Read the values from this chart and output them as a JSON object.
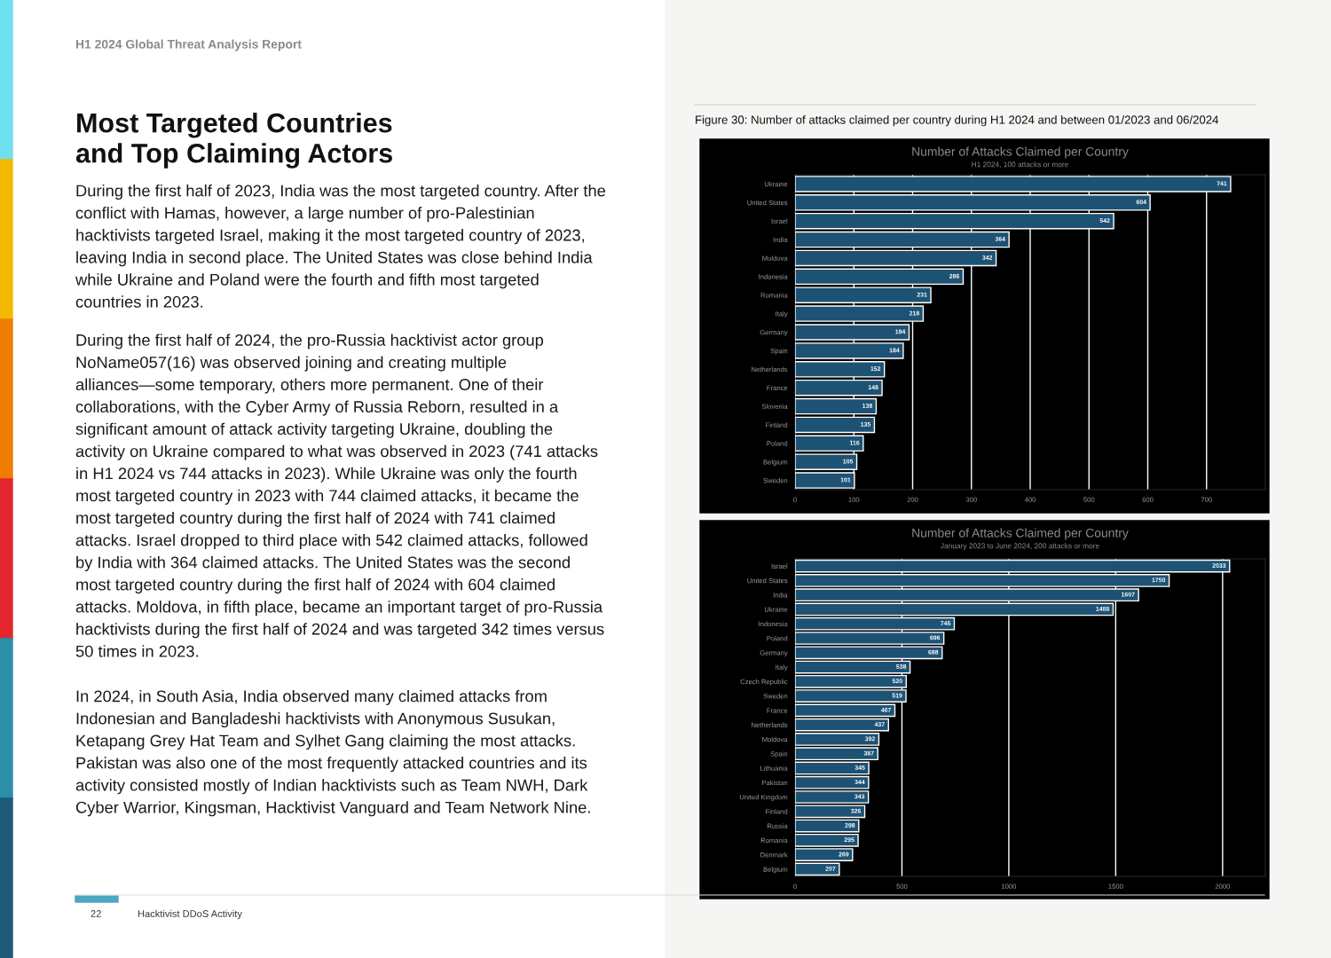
{
  "chart_data": [
    {
      "type": "other",
      "title": "Most Targeted Countries and Top Claiming Actors",
      "annotations": [
        "H1 2024 Global Threat Analysis Report",
        "During the first half of 2023, India was the most targeted country. After the conflict with Hamas, however, a large number of pro-Palestinian hacktivists targeted Israel, making it the most targeted country of 2023, leaving India in second place. The United States was close behind India while Ukraine and Poland were the fourth and fifth most targeted countries in 2023.",
        "During the first half of 2024, the pro-Russia hacktivist actor group NoName057(16) was observed joining and creating multiple alliances—some temporary, others more permanent. One of their collaborations, with the Cyber Army of Russia Reborn, resulted in a significant amount of attack activity targeting Ukraine, doubling the activity on Ukraine compared to what was observed in 2023 (741 attacks in H1 2024 vs 744 attacks in 2023). While Ukraine was only the fourth most targeted country in 2023 with 744 claimed attacks, it became the most targeted country during the first half of 2024 with 741 claimed attacks. Israel dropped to third place with 542 claimed attacks, followed by India with 364 claimed attacks. The United States was the second most targeted country during the first half of 2024 with 604 claimed attacks. Moldova, in fifth place, became an important target of pro-Russia hacktivists during the first half of 2024 and was targeted 342 times versus 50 times in 2023.",
        "In 2024, in South Asia, India observed many claimed attacks from Indonesian and Bangladeshi hacktivists with Anonymous Susukan, Ketapang Grey Hat Team and Sylhet Gang claiming the most attacks. Pakistan was also one of the most frequently attacked countries and its activity consisted mostly of Indian hacktivists such as Team NWH, Dark Cyber Warrior, Kingsman, Hacktivist Vanguard and Team Network Nine.",
        "22",
        "Hacktivist DDoS Activity"
      ]
    },
    {
      "type": "bar",
      "orientation": "horizontal",
      "title": "Number of Attacks Claimed per Country",
      "subtitle": "H1 2024, 100 attacks or more",
      "annotations": [
        "Figure 30: Number of attacks claimed per country during H1 2024 and between 01/2023 and 06/2024"
      ],
      "categories": [
        "Ukraine",
        "United States",
        "Israel",
        "India",
        "Moldova",
        "Indonesia",
        "Romania",
        "Italy",
        "Germany",
        "Spain",
        "Netherlands",
        "France",
        "Slovenia",
        "Finland",
        "Poland",
        "Belgium",
        "Sweden"
      ],
      "values": [
        741,
        604,
        542,
        364,
        342,
        286,
        231,
        218,
        194,
        184,
        152,
        148,
        138,
        135,
        116,
        105,
        101
      ],
      "color": "#1d5274",
      "xlim": [
        0,
        800
      ],
      "xticks": [
        0,
        100,
        200,
        300,
        400,
        500,
        600,
        700
      ],
      "grid": "x",
      "data_labels": true
    },
    {
      "type": "bar",
      "orientation": "horizontal",
      "title": "Number of Attacks Claimed per Country",
      "subtitle": "January 2023 to June 2024, 200 attacks or more",
      "categories": [
        "Israel",
        "United States",
        "India",
        "Ukraine",
        "Indonesia",
        "Poland",
        "Germany",
        "Italy",
        "Czech Republic",
        "Sweden",
        "France",
        "Netherlands",
        "Moldova",
        "Spain",
        "Lithuania",
        "Pakistan",
        "United Kingdom",
        "Finland",
        "Russia",
        "Romania",
        "Denmark",
        "Belgium"
      ],
      "values": [
        2033,
        1750,
        1607,
        1488,
        745,
        696,
        688,
        538,
        520,
        519,
        467,
        437,
        392,
        387,
        345,
        344,
        343,
        326,
        298,
        295,
        269,
        207
      ],
      "color": "#1d5274",
      "xlim": [
        0,
        2200
      ],
      "xticks": [
        0,
        500,
        1000,
        1500,
        2000
      ],
      "grid": "x",
      "data_labels": true
    }
  ]
}
